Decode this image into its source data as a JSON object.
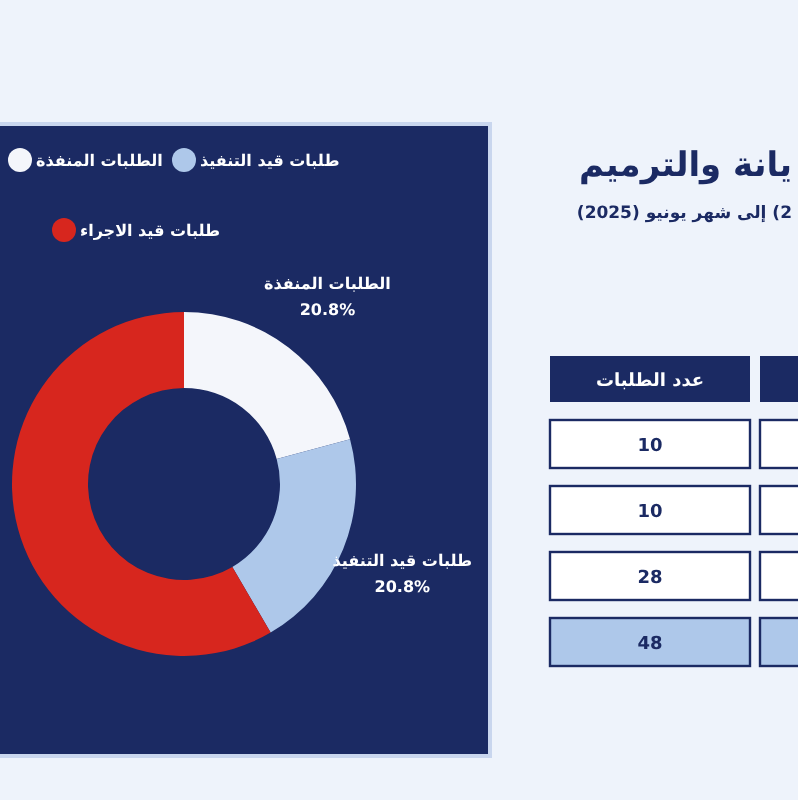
{
  "chart_data": [
    {
      "type": "donut",
      "title": "يانة والترميم",
      "subtitle": "2) إلى شهر يونيو (2025)",
      "categories": [
        "الطلبات المنفذة",
        "طلبات قيد التنفيذ",
        "طلبات قيد الاجراء"
      ],
      "values": [
        20.8,
        20.8,
        58.4
      ],
      "colors": [
        "#f4f6fb",
        "#aec8ea",
        "#d7261e"
      ],
      "value_labels": [
        "20.8%",
        "20.8%",
        null
      ],
      "legend": "top"
    },
    {
      "type": "other",
      "title": "عدد الطلبات",
      "annotations": [
        "10",
        "10",
        "28",
        "48"
      ]
    }
  ]
}
